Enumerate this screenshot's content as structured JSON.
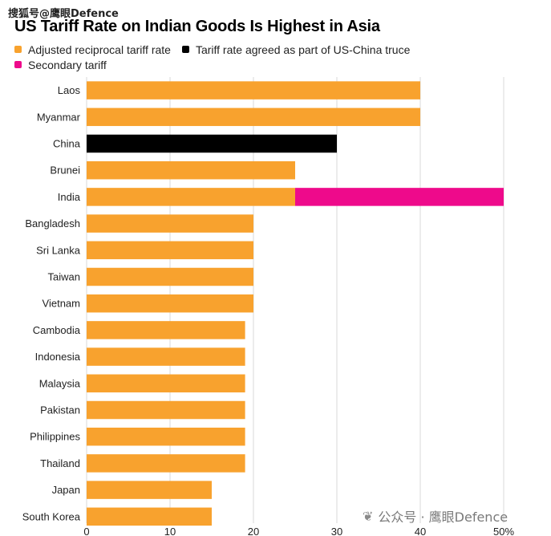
{
  "watermark_top": "搜狐号@鹰眼Defence",
  "watermark_bottom": {
    "icon": "wechat-icon",
    "text": "公众号 · 鹰眼Defence"
  },
  "chart_data": {
    "type": "bar",
    "orientation": "horizontal",
    "stacked": true,
    "title": "US Tariff Rate on Indian Goods Is Highest in Asia",
    "xlim": [
      0,
      50
    ],
    "x_ticks": [
      "0",
      "10",
      "20",
      "30",
      "40",
      "50%"
    ],
    "grid": true,
    "legend_position": "top-left",
    "series_info": [
      {
        "name": "Adjusted reciprocal tariff rate",
        "color": "#F8A22E"
      },
      {
        "name": "Tariff rate agreed as part of US-China truce",
        "color": "#000000"
      },
      {
        "name": "Secondary tariff",
        "color": "#EE0A8B"
      }
    ],
    "categories": [
      "Laos",
      "Myanmar",
      "China",
      "Brunei",
      "India",
      "Bangladesh",
      "Sri Lanka",
      "Taiwan",
      "Vietnam",
      "Cambodia",
      "Indonesia",
      "Malaysia",
      "Pakistan",
      "Philippines",
      "Thailand",
      "Japan",
      "South Korea"
    ],
    "series": [
      {
        "name": "Adjusted reciprocal tariff rate",
        "values": [
          40,
          40,
          0,
          25,
          25,
          20,
          20,
          20,
          20,
          19,
          19,
          19,
          19,
          19,
          19,
          15,
          15
        ]
      },
      {
        "name": "Tariff rate agreed as part of US-China truce",
        "values": [
          0,
          0,
          30,
          0,
          0,
          0,
          0,
          0,
          0,
          0,
          0,
          0,
          0,
          0,
          0,
          0,
          0
        ]
      },
      {
        "name": "Secondary tariff",
        "values": [
          0,
          0,
          0,
          0,
          25,
          0,
          0,
          0,
          0,
          0,
          0,
          0,
          0,
          0,
          0,
          0,
          0
        ]
      }
    ]
  }
}
